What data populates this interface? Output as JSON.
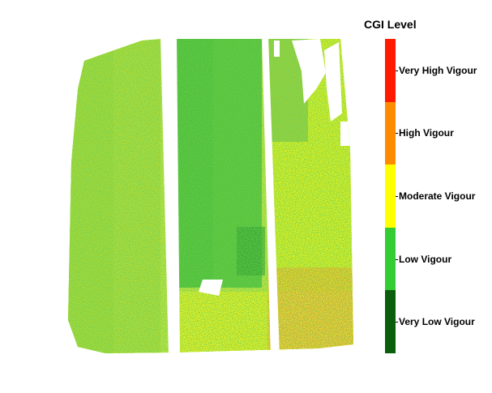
{
  "legend": {
    "title": "CGI Level",
    "classes": [
      {
        "label": "Very High Vigour",
        "color": "#ff1a00"
      },
      {
        "label": "High Vigour",
        "color": "#ff8c00"
      },
      {
        "label": "Moderate Vigour",
        "color": "#ffff00"
      },
      {
        "label": "Low Vigour",
        "color": "#33cc33"
      },
      {
        "label": "Very Low Vigour",
        "color": "#0b5e0b"
      }
    ]
  },
  "colors": {
    "background": "#ffffff",
    "field_base": "#b9e03a"
  }
}
